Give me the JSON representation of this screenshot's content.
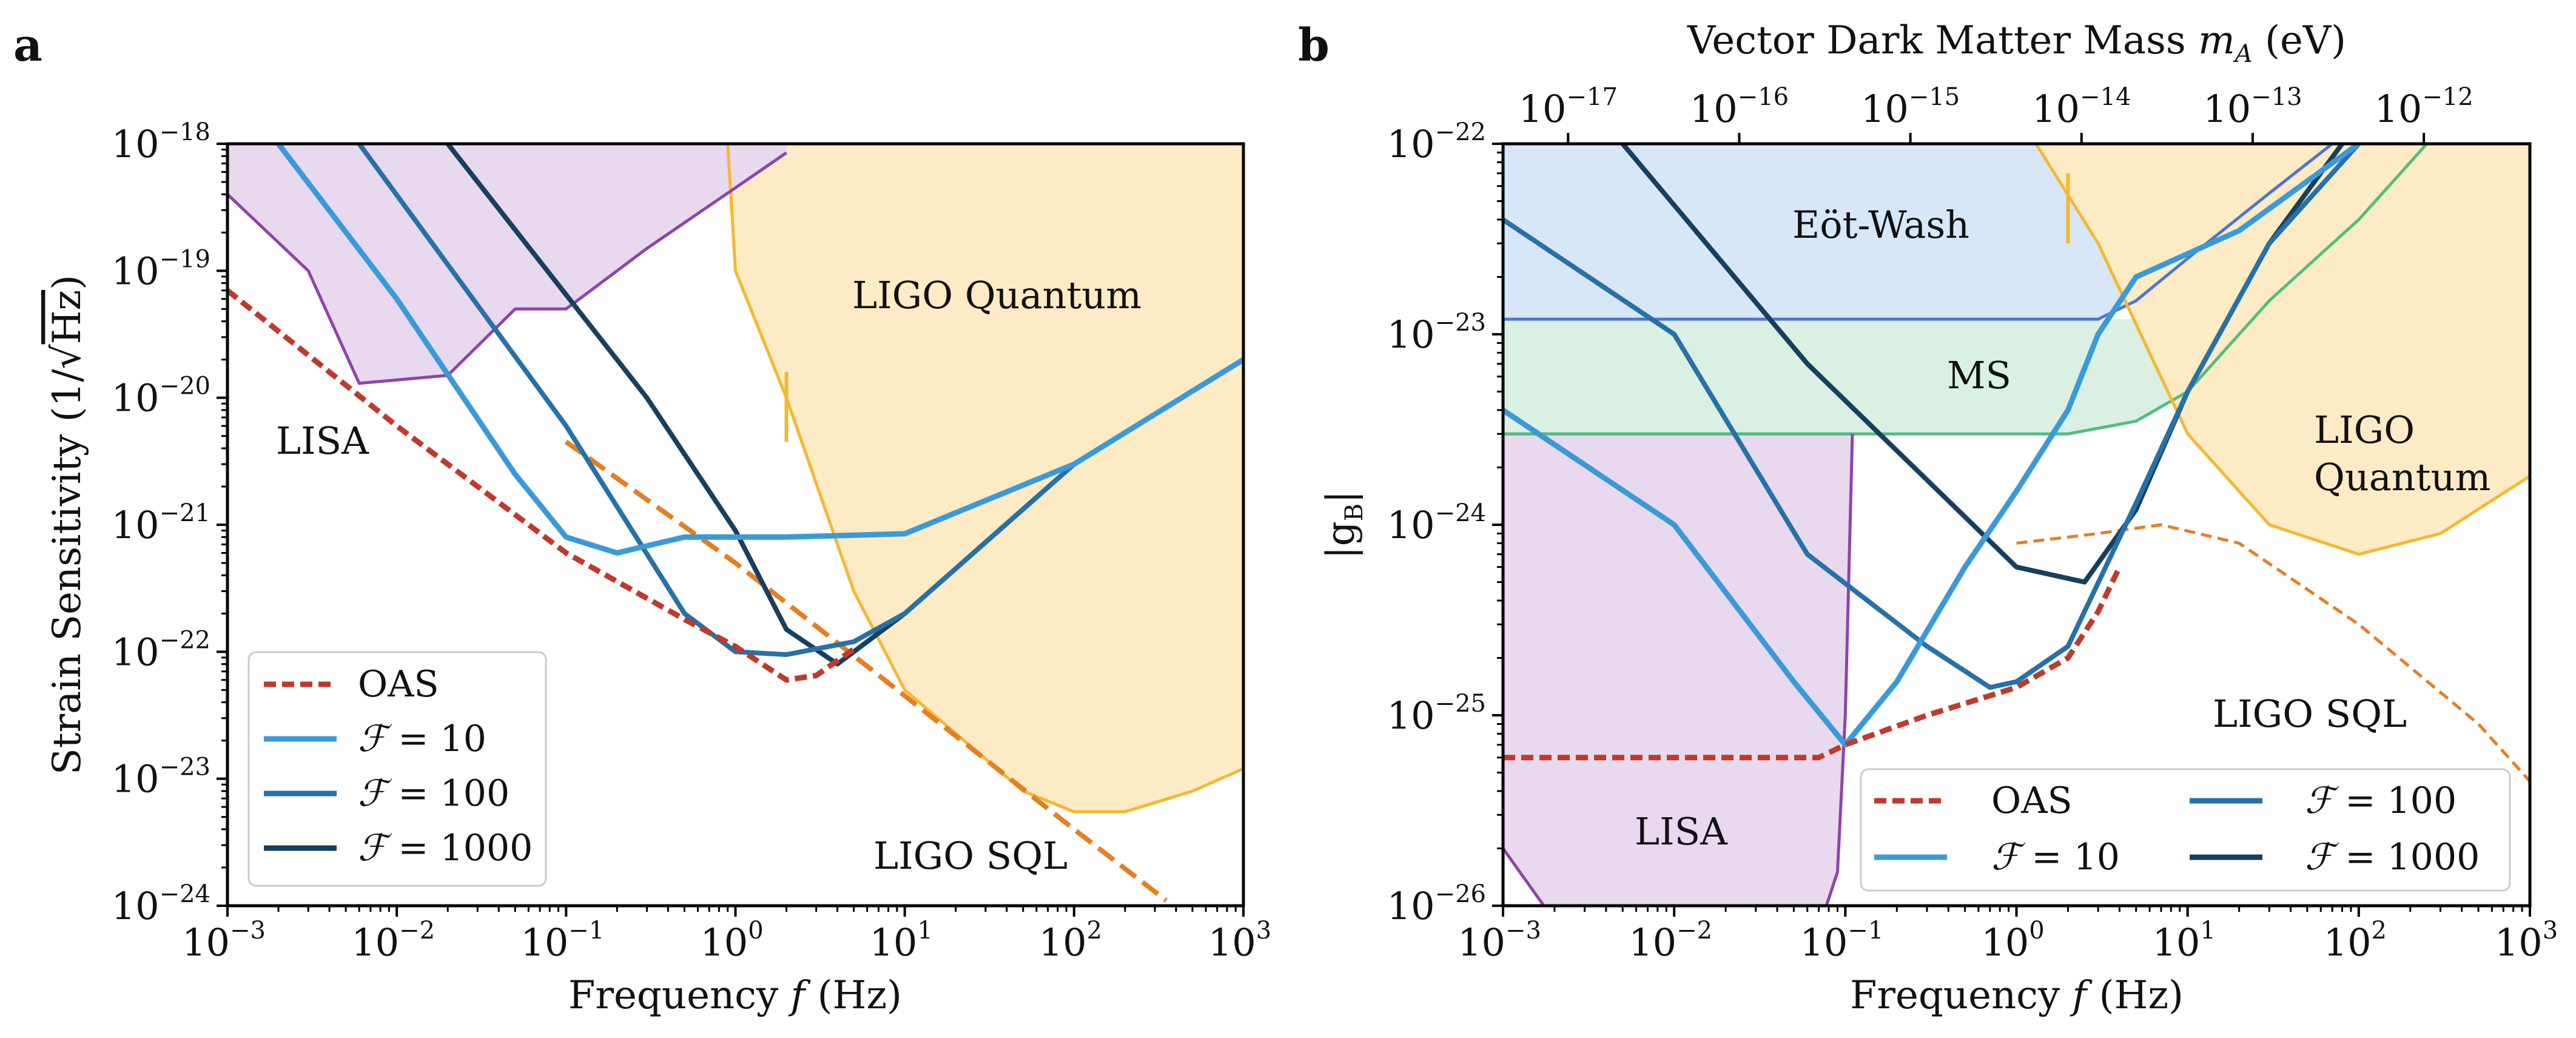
{
  "colors": {
    "oas": "#c0392b",
    "f10": "#3a9ad9",
    "f100": "#2671a8",
    "f1000": "#173f5f",
    "lisa": "#8e44ad",
    "lisa_fill": "#e8d9ef",
    "ligo": "#f5b82e",
    "ligo_fill": "#fdebc6",
    "ligo_sql": "#e67e22",
    "eotwash": "#4f74d6",
    "eotwash_fill": "#d7e7f7",
    "ms": "#52be80",
    "ms_fill": "#d9f0e2"
  },
  "chart_data": [
    {
      "panel": "a",
      "type": "line",
      "xlabel_parts": {
        "pre": "Frequency ",
        "var": "f",
        "post": " (Hz)"
      },
      "ylabel_parts": {
        "pre": "Strain Sensitivity (1/",
        "root": "Hz",
        "post": ")"
      },
      "xscale": "log",
      "yscale": "log",
      "xlim": [
        0.001,
        1000
      ],
      "ylim": [
        1e-24,
        1e-18
      ],
      "xticks": {
        "base": "10",
        "exponents": [
          "−3",
          "−2",
          "−1",
          "0",
          "1",
          "2",
          "3"
        ]
      },
      "yticks": {
        "base": "10",
        "exponents": [
          "−18",
          "−19",
          "−20",
          "−21",
          "−22",
          "−23",
          "−24"
        ]
      },
      "region_labels": {
        "lisa": "LISA",
        "ligo_quantum": "LIGO Quantum",
        "ligo_sql": "LIGO SQL"
      },
      "legend": {
        "oas": "OAS",
        "f10": "= 10",
        "f100": "= 100",
        "f1000": "= 1000",
        "fsym": "ℱ",
        "position": "lower-left"
      },
      "series": {
        "oas": [
          [
            0.001,
            7e-20
          ],
          [
            0.01,
            6e-21
          ],
          [
            0.1,
            6e-22
          ],
          [
            0.5,
            1.8e-22
          ],
          [
            1,
            1.1e-22
          ],
          [
            2,
            6e-23
          ],
          [
            3,
            6.5e-23
          ],
          [
            5,
            1.05e-22
          ]
        ],
        "f10": [
          [
            0.002,
            1e-18
          ],
          [
            0.01,
            6e-20
          ],
          [
            0.05,
            2.5e-21
          ],
          [
            0.1,
            8e-22
          ],
          [
            0.2,
            6e-22
          ],
          [
            0.5,
            8e-22
          ],
          [
            1,
            8e-22
          ],
          [
            2,
            8e-22
          ],
          [
            10,
            8.5e-22
          ],
          [
            100,
            3e-21
          ],
          [
            1000,
            2e-20
          ]
        ],
        "f100": [
          [
            0.006,
            1e-18
          ],
          [
            0.1,
            6e-21
          ],
          [
            0.5,
            2e-22
          ],
          [
            1,
            1e-22
          ],
          [
            2,
            9.5e-23
          ],
          [
            5,
            1.2e-22
          ],
          [
            10,
            2e-22
          ],
          [
            100,
            3e-21
          ],
          [
            1000,
            2e-20
          ]
        ],
        "f1000": [
          [
            0.02,
            1e-18
          ],
          [
            0.3,
            1e-20
          ],
          [
            1,
            9e-22
          ],
          [
            2,
            1.5e-22
          ],
          [
            4,
            8e-23
          ],
          [
            10,
            2e-22
          ],
          [
            100,
            3e-21
          ],
          [
            1000,
            2e-20
          ]
        ],
        "lisa": [
          [
            0.001,
            4e-19
          ],
          [
            0.003,
            1e-19
          ],
          [
            0.006,
            1.3e-20
          ],
          [
            0.02,
            1.5e-20
          ],
          [
            0.05,
            5e-20
          ],
          [
            0.1,
            5e-20
          ],
          [
            0.3,
            1.5e-19
          ],
          [
            1,
            4.5e-19
          ],
          [
            2,
            8.5e-19
          ]
        ],
        "ligo_quantum": [
          [
            0.9,
            1e-18
          ],
          [
            1,
            1e-19
          ],
          [
            2,
            1e-20
          ],
          [
            5,
            3e-22
          ],
          [
            10,
            5e-23
          ],
          [
            50,
            8e-24
          ],
          [
            100,
            5.5e-24
          ],
          [
            200,
            5.5e-24
          ],
          [
            500,
            8e-24
          ],
          [
            1000,
            1.2e-23
          ]
        ],
        "ligo_sql": [
          [
            0.1,
            4.5e-21
          ],
          [
            1,
            5e-22
          ],
          [
            10,
            4.5e-23
          ],
          [
            100,
            4e-24
          ],
          [
            350,
            1.1e-24
          ]
        ]
      }
    },
    {
      "panel": "b",
      "type": "line",
      "xlabel_parts": {
        "pre": "Frequency ",
        "var": "f",
        "post": " (Hz)"
      },
      "ylabel": "|g",
      "ylabel_sub": "B",
      "ylabel_close": "|",
      "top_xlabel_parts": {
        "pre": "Vector Dark Matter Mass ",
        "var": "m",
        "sub": "A",
        "post": " (eV)"
      },
      "xscale": "log",
      "yscale": "log",
      "xlim": [
        0.001,
        1000
      ],
      "ylim": [
        1e-26,
        1e-22
      ],
      "xticks": {
        "base": "10",
        "exponents": [
          "−3",
          "−2",
          "−1",
          "0",
          "1",
          "2",
          "3"
        ]
      },
      "yticks": {
        "base": "10",
        "exponents": [
          "−22",
          "−23",
          "−24",
          "−25",
          "−26"
        ]
      },
      "top_xticks": {
        "base": "10",
        "exponents": [
          "−17",
          "−16",
          "−15",
          "−14",
          "−13",
          "−12"
        ]
      },
      "top_tick_freq": [
        0.0024,
        0.024,
        0.24,
        2.4,
        24,
        240
      ],
      "region_labels": {
        "eotwash": "Eöt-Wash",
        "ms": "MS",
        "ligo": "LIGO",
        "quantum": "Quantum",
        "lisa": "LISA",
        "ligo_sql": "LIGO SQL"
      },
      "legend": {
        "oas": "OAS",
        "f10": "= 10",
        "f100": "= 100",
        "f1000": "= 1000",
        "fsym": "ℱ",
        "position": "lower-right"
      },
      "series": {
        "oas": [
          [
            0.001,
            6e-26
          ],
          [
            0.07,
            6e-26
          ],
          [
            0.1,
            7e-26
          ],
          [
            0.3,
            1e-25
          ],
          [
            1,
            1.4e-25
          ],
          [
            2,
            2e-25
          ],
          [
            3,
            3.5e-25
          ],
          [
            4,
            6e-25
          ]
        ],
        "f10": [
          [
            0.001,
            4e-24
          ],
          [
            0.01,
            1e-24
          ],
          [
            0.05,
            1.5e-25
          ],
          [
            0.1,
            7e-26
          ],
          [
            0.2,
            1.5e-25
          ],
          [
            0.5,
            6e-25
          ],
          [
            1,
            1.5e-24
          ],
          [
            2,
            4e-24
          ],
          [
            3,
            1e-23
          ],
          [
            5,
            2e-23
          ],
          [
            20,
            3.5e-23
          ],
          [
            100,
            1e-22
          ]
        ],
        "f100": [
          [
            0.001,
            4e-23
          ],
          [
            0.01,
            1e-23
          ],
          [
            0.06,
            7e-25
          ],
          [
            0.3,
            2.3e-25
          ],
          [
            0.7,
            1.4e-25
          ],
          [
            1,
            1.5e-25
          ],
          [
            2,
            2.3e-25
          ],
          [
            5,
            1.3e-24
          ],
          [
            10,
            5e-24
          ],
          [
            30,
            3e-23
          ],
          [
            100,
            1e-22
          ]
        ],
        "f1000": [
          [
            0.005,
            1e-22
          ],
          [
            0.06,
            7e-24
          ],
          [
            0.5,
            1.1e-24
          ],
          [
            1,
            6e-25
          ],
          [
            2.5,
            5e-25
          ],
          [
            5,
            1.2e-24
          ],
          [
            10,
            5e-24
          ],
          [
            30,
            3e-23
          ],
          [
            80,
            1e-22
          ]
        ],
        "eotwash": [
          [
            0.001,
            1.2e-23
          ],
          [
            3,
            1.2e-23
          ],
          [
            5,
            1.5e-23
          ],
          [
            10,
            2.5e-23
          ],
          [
            30,
            5.5e-23
          ],
          [
            70,
            1e-22
          ]
        ],
        "ms": [
          [
            0.001,
            3e-24
          ],
          [
            2,
            3e-24
          ],
          [
            5,
            3.5e-24
          ],
          [
            10,
            5e-24
          ],
          [
            30,
            1.5e-23
          ],
          [
            100,
            4e-23
          ],
          [
            250,
            1e-22
          ]
        ],
        "lisa": [
          [
            0.001,
            2e-26
          ],
          [
            0.003,
            5e-27
          ],
          [
            0.06,
            5e-27
          ],
          [
            0.09,
            1.5e-26
          ],
          [
            0.1,
            1e-25
          ],
          [
            0.11,
            3e-24
          ]
        ],
        "ligo_quantum": [
          [
            1.3,
            1e-22
          ],
          [
            3,
            3e-23
          ],
          [
            10,
            3e-24
          ],
          [
            30,
            1e-24
          ],
          [
            100,
            7e-25
          ],
          [
            300,
            9e-25
          ],
          [
            1000,
            1.8e-24
          ]
        ],
        "ligo_sql": [
          [
            1,
            8e-25
          ],
          [
            3,
            9e-25
          ],
          [
            7,
            1e-24
          ],
          [
            20,
            8e-25
          ],
          [
            100,
            3e-25
          ],
          [
            500,
            9e-26
          ],
          [
            1000,
            4.5e-26
          ]
        ]
      }
    }
  ]
}
